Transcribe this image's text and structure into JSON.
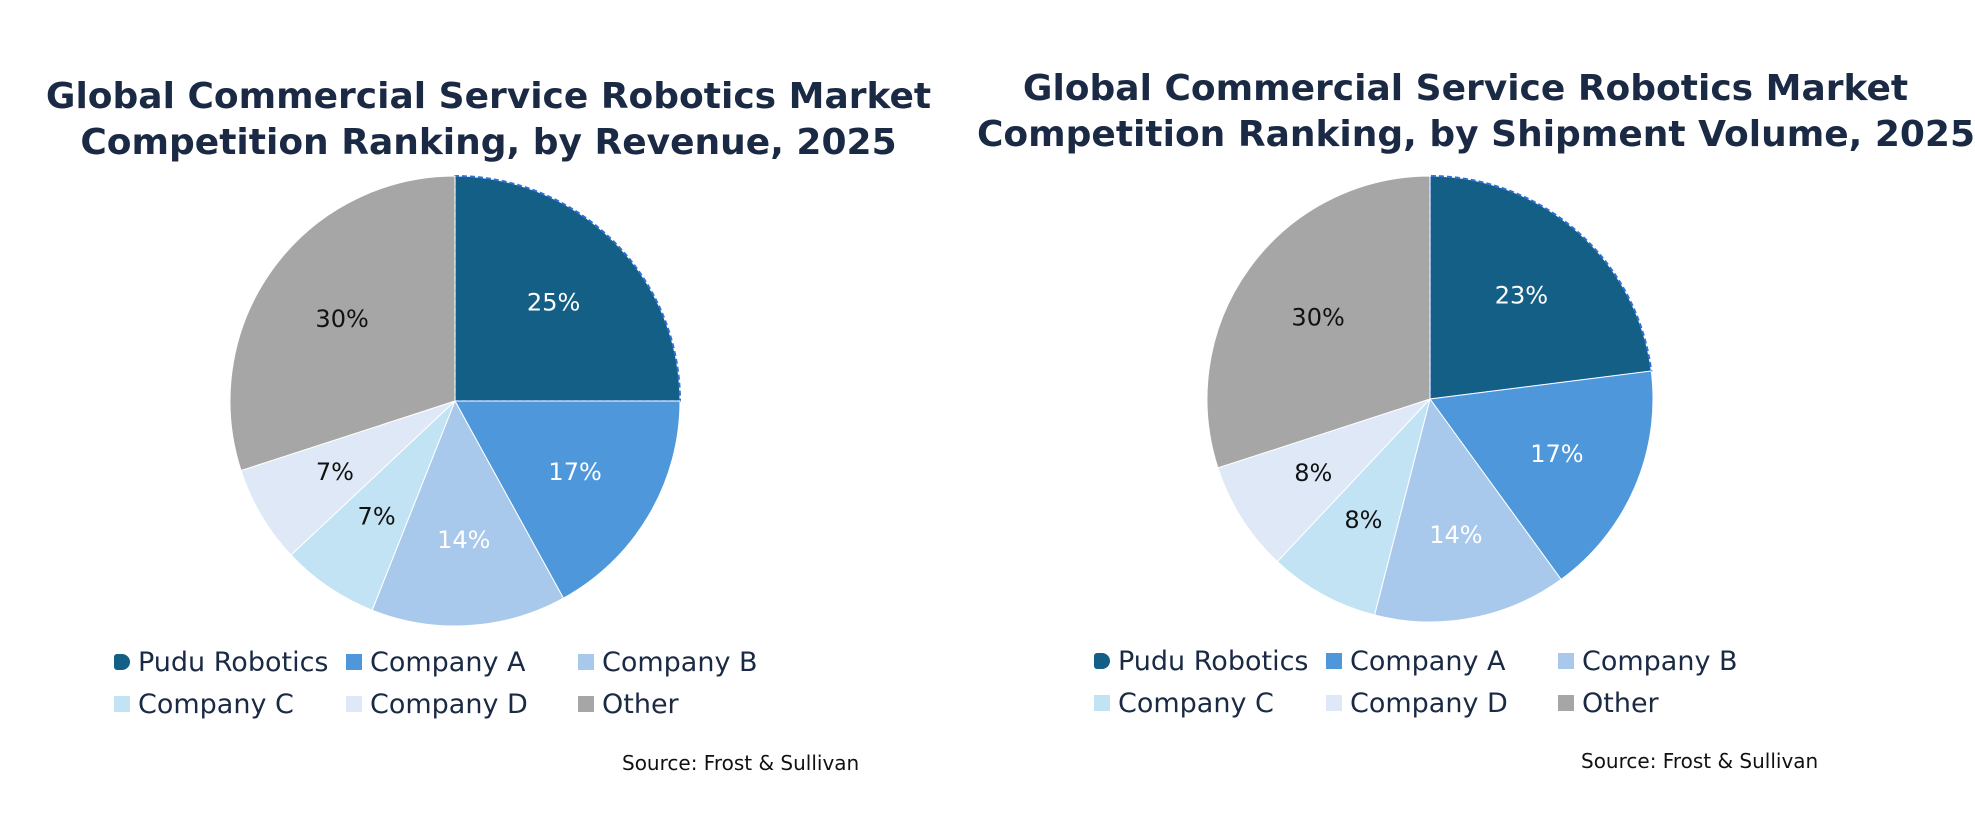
{
  "chart_data": [
    {
      "type": "pie",
      "title": "Global Commercial Service Robotics Market Competition Ranking, by Revenue, 2025",
      "title_lines": [
        "Global Commercial Service Robotics Market",
        "Competition Ranking, by Revenue, 2025"
      ],
      "categories": [
        "Pudu Robotics",
        "Company A",
        "Company B",
        "Company C",
        "Company D",
        "Other"
      ],
      "values": [
        25,
        17,
        14,
        7,
        7,
        30
      ],
      "labels": [
        "25%",
        "17%",
        "14%",
        "7%",
        "7%",
        "30%"
      ],
      "colors": [
        "#145f86",
        "#4e97da",
        "#a8c9ec",
        "#c2e3f4",
        "#dfe8f6",
        "#a6a6a6"
      ],
      "label_colors": [
        "#ffffff",
        "#ffffff",
        "#ffffff",
        "#111111",
        "#111111",
        "#111111"
      ],
      "legend_position": "bottom",
      "start_angle": "12 o'clock",
      "direction": "clockwise",
      "source": "Source: Frost & Sullivan"
    },
    {
      "type": "pie",
      "title": "Global Commercial Service Robotics Market Competition Ranking, by Shipment Volume, 2025",
      "title_lines": [
        "Global Commercial Service Robotics Market",
        "Competition Ranking, by Shipment Volume, 2025"
      ],
      "categories": [
        "Pudu Robotics",
        "Company A",
        "Company B",
        "Company C",
        "Company D",
        "Other"
      ],
      "values": [
        23,
        17,
        14,
        8,
        8,
        30
      ],
      "labels": [
        "23%",
        "17%",
        "14%",
        "8%",
        "8%",
        "30%"
      ],
      "colors": [
        "#145f86",
        "#4e97da",
        "#a8c9ec",
        "#c2e3f4",
        "#dfe8f6",
        "#a6a6a6"
      ],
      "label_colors": [
        "#ffffff",
        "#ffffff",
        "#ffffff",
        "#111111",
        "#111111",
        "#111111"
      ],
      "legend_position": "bottom",
      "start_angle": "12 o'clock",
      "direction": "clockwise",
      "source": "Source: Frost & Sullivan"
    }
  ]
}
